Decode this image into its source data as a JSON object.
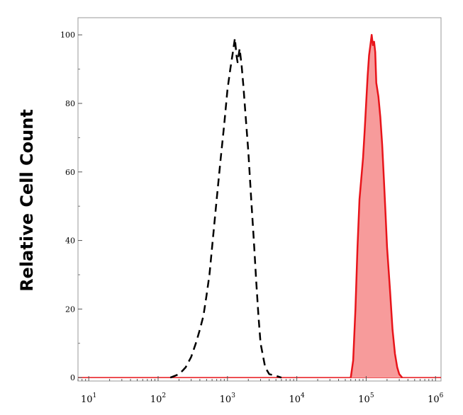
{
  "chart_data": {
    "type": "area",
    "title": "",
    "xlabel": "",
    "ylabel": "Relative Cell Count",
    "x_scale": "log",
    "xlim": [
      7,
      1200000
    ],
    "ylim": [
      -1,
      105
    ],
    "x_ticks": [
      {
        "value": 10,
        "base": "10",
        "exp": "1"
      },
      {
        "value": 100,
        "base": "10",
        "exp": "2"
      },
      {
        "value": 1000,
        "base": "10",
        "exp": "3"
      },
      {
        "value": 10000,
        "base": "10",
        "exp": "4"
      },
      {
        "value": 100000,
        "base": "10",
        "exp": "5"
      },
      {
        "value": 1000000,
        "base": "10",
        "exp": "6"
      }
    ],
    "y_ticks": [
      "0",
      "20",
      "40",
      "60",
      "80",
      "100"
    ],
    "grid": false,
    "series": [
      {
        "style": "dashed black line (control)",
        "color": "#000000",
        "x": [
          150,
          175,
          200,
          225,
          250,
          300,
          350,
          400,
          450,
          500,
          550,
          600,
          700,
          800,
          900,
          1000,
          1100,
          1200,
          1280,
          1350,
          1400,
          1500,
          1600,
          1700,
          1800,
          2000,
          2200,
          2400,
          2600,
          2800,
          3000,
          3500,
          4000,
          5000,
          6000
        ],
        "y": [
          0,
          0.5,
          1,
          2,
          3,
          6,
          10,
          14,
          18,
          24,
          30,
          38,
          52,
          64,
          74,
          84,
          90,
          95,
          99,
          94,
          92,
          96,
          91,
          85,
          78,
          66,
          52,
          40,
          28,
          18,
          10,
          3,
          1,
          0.5,
          0
        ]
      },
      {
        "style": "solid red line with pink fill (stained)",
        "color": "#e8141a",
        "fill": "#f79b9b",
        "x": [
          60000,
          65000,
          70000,
          75000,
          80000,
          85000,
          90000,
          95000,
          100000,
          105000,
          110000,
          115000,
          120000,
          125000,
          130000,
          135000,
          140000,
          145000,
          150000,
          160000,
          170000,
          180000,
          190000,
          200000,
          220000,
          240000,
          260000,
          280000,
          300000,
          330000
        ],
        "y": [
          0,
          5,
          20,
          38,
          52,
          58,
          64,
          72,
          80,
          88,
          94,
          97,
          100,
          97,
          98,
          95,
          86,
          84,
          82,
          76,
          68,
          58,
          48,
          38,
          26,
          14,
          7,
          3,
          1,
          0
        ]
      }
    ]
  }
}
